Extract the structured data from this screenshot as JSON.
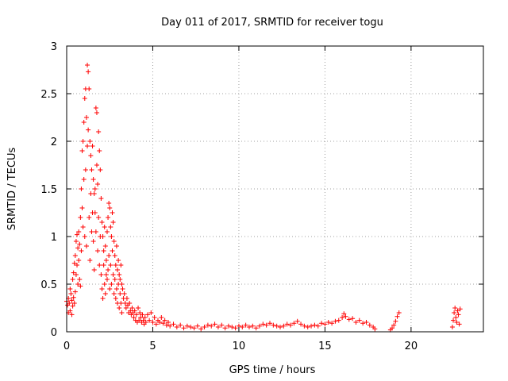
{
  "chart_data": {
    "type": "scatter",
    "title": "Day 011 of 2017, SRMTID for receiver togu",
    "xlabel": "GPS time / hours",
    "ylabel": "SRMTID / TECUs",
    "xlim": [
      0,
      24.2
    ],
    "ylim": [
      0,
      3
    ],
    "xticks": [
      0,
      5,
      10,
      15,
      20
    ],
    "xtick_labels": [
      "0",
      "5",
      "10",
      "15",
      "20"
    ],
    "yticks": [
      0,
      0.5,
      1,
      1.5,
      2,
      2.5,
      3
    ],
    "ytick_labels": [
      "0",
      "0.5",
      "1",
      "1.5",
      "2",
      "2.5",
      "3"
    ],
    "grid": true,
    "marker": "+",
    "color": "#ff0000",
    "series": [
      {
        "name": "SRMTID",
        "points": [
          [
            0.0,
            0.32
          ],
          [
            0.05,
            0.28
          ],
          [
            0.1,
            0.35
          ],
          [
            0.15,
            0.3
          ],
          [
            0.2,
            0.22
          ],
          [
            0.25,
            0.4
          ],
          [
            0.3,
            0.33
          ],
          [
            0.35,
            0.27
          ],
          [
            0.4,
            0.36
          ],
          [
            0.45,
            0.3
          ],
          [
            0.1,
            0.2
          ],
          [
            0.2,
            0.45
          ],
          [
            0.3,
            0.18
          ],
          [
            0.35,
            0.55
          ],
          [
            0.4,
            0.62
          ],
          [
            0.45,
            0.72
          ],
          [
            0.5,
            0.8
          ],
          [
            0.5,
            0.42
          ],
          [
            0.55,
            0.95
          ],
          [
            0.55,
            0.6
          ],
          [
            0.6,
            1.02
          ],
          [
            0.6,
            0.7
          ],
          [
            0.65,
            0.88
          ],
          [
            0.65,
            0.5
          ],
          [
            0.7,
            1.05
          ],
          [
            0.7,
            0.75
          ],
          [
            0.75,
            0.92
          ],
          [
            0.75,
            0.55
          ],
          [
            0.8,
            1.2
          ],
          [
            0.8,
            0.48
          ],
          [
            0.85,
            1.5
          ],
          [
            0.85,
            0.85
          ],
          [
            0.9,
            1.9
          ],
          [
            0.9,
            1.3
          ],
          [
            0.95,
            2.0
          ],
          [
            0.95,
            1.1
          ],
          [
            1.0,
            2.2
          ],
          [
            1.0,
            1.6
          ],
          [
            1.05,
            2.45
          ],
          [
            1.05,
            1.0
          ],
          [
            1.1,
            2.55
          ],
          [
            1.1,
            1.7
          ],
          [
            1.15,
            2.25
          ],
          [
            1.15,
            0.9
          ],
          [
            1.2,
            2.8
          ],
          [
            1.2,
            1.95
          ],
          [
            1.25,
            2.73
          ],
          [
            1.25,
            2.12
          ],
          [
            1.3,
            2.55
          ],
          [
            1.3,
            1.2
          ],
          [
            1.35,
            2.0
          ],
          [
            1.35,
            0.75
          ],
          [
            1.4,
            1.85
          ],
          [
            1.4,
            1.45
          ],
          [
            1.45,
            1.7
          ],
          [
            1.45,
            1.05
          ],
          [
            1.5,
            1.95
          ],
          [
            1.5,
            1.25
          ],
          [
            1.55,
            1.6
          ],
          [
            1.55,
            0.95
          ],
          [
            1.6,
            1.45
          ],
          [
            1.6,
            0.65
          ],
          [
            1.65,
            1.25
          ],
          [
            1.65,
            1.5
          ],
          [
            1.7,
            2.35
          ],
          [
            1.7,
            1.05
          ],
          [
            1.75,
            2.3
          ],
          [
            1.75,
            1.75
          ],
          [
            1.8,
            1.55
          ],
          [
            1.8,
            0.85
          ],
          [
            1.85,
            2.1
          ],
          [
            1.85,
            1.2
          ],
          [
            1.9,
            1.9
          ],
          [
            1.9,
            0.7
          ],
          [
            1.95,
            1.7
          ],
          [
            1.95,
            1.0
          ],
          [
            2.0,
            1.4
          ],
          [
            2.0,
            0.6
          ],
          [
            2.05,
            1.15
          ],
          [
            2.05,
            0.45
          ],
          [
            2.1,
            1.0
          ],
          [
            2.1,
            0.35
          ],
          [
            2.15,
            0.85
          ],
          [
            2.15,
            0.7
          ],
          [
            2.2,
            1.1
          ],
          [
            2.2,
            0.5
          ],
          [
            2.25,
            0.9
          ],
          [
            2.25,
            0.4
          ],
          [
            2.3,
            0.75
          ],
          [
            2.3,
            0.6
          ],
          [
            2.35,
            1.05
          ],
          [
            2.35,
            0.55
          ],
          [
            2.4,
            1.2
          ],
          [
            2.4,
            0.65
          ],
          [
            2.45,
            1.35
          ],
          [
            2.45,
            0.8
          ],
          [
            2.5,
            1.3
          ],
          [
            2.5,
            0.45
          ],
          [
            2.55,
            1.1
          ],
          [
            2.55,
            0.7
          ],
          [
            2.6,
            1.0
          ],
          [
            2.6,
            0.5
          ],
          [
            2.65,
            1.25
          ],
          [
            2.65,
            0.85
          ],
          [
            2.7,
            1.15
          ],
          [
            2.7,
            0.6
          ],
          [
            2.75,
            0.95
          ],
          [
            2.75,
            0.4
          ],
          [
            2.8,
            0.8
          ],
          [
            2.8,
            0.55
          ],
          [
            2.85,
            0.7
          ],
          [
            2.85,
            0.35
          ],
          [
            2.9,
            0.9
          ],
          [
            2.9,
            0.45
          ],
          [
            2.95,
            0.65
          ],
          [
            2.95,
            0.3
          ],
          [
            3.0,
            0.75
          ],
          [
            3.0,
            0.5
          ],
          [
            3.05,
            0.6
          ],
          [
            3.05,
            0.25
          ],
          [
            3.1,
            0.55
          ],
          [
            3.1,
            0.4
          ],
          [
            3.15,
            0.7
          ],
          [
            3.15,
            0.3
          ],
          [
            3.2,
            0.5
          ],
          [
            3.2,
            0.2
          ],
          [
            3.25,
            0.45
          ],
          [
            3.3,
            0.35
          ],
          [
            3.35,
            0.4
          ],
          [
            3.4,
            0.3
          ],
          [
            3.45,
            0.25
          ],
          [
            3.5,
            0.35
          ],
          [
            3.55,
            0.28
          ],
          [
            3.6,
            0.2
          ],
          [
            3.65,
            0.3
          ],
          [
            3.7,
            0.22
          ],
          [
            3.75,
            0.18
          ],
          [
            3.8,
            0.25
          ],
          [
            3.85,
            0.2
          ],
          [
            3.9,
            0.15
          ],
          [
            3.95,
            0.22
          ],
          [
            4.0,
            0.12
          ],
          [
            4.05,
            0.18
          ],
          [
            4.1,
            0.1
          ],
          [
            4.15,
            0.25
          ],
          [
            4.2,
            0.12
          ],
          [
            4.25,
            0.2
          ],
          [
            4.3,
            0.15
          ],
          [
            4.35,
            0.1
          ],
          [
            4.4,
            0.18
          ],
          [
            4.45,
            0.12
          ],
          [
            4.5,
            0.08
          ],
          [
            4.55,
            0.15
          ],
          [
            4.6,
            0.1
          ],
          [
            4.7,
            0.18
          ],
          [
            4.8,
            0.12
          ],
          [
            4.9,
            0.2
          ],
          [
            5.0,
            0.1
          ],
          [
            5.1,
            0.15
          ],
          [
            5.2,
            0.08
          ],
          [
            5.3,
            0.12
          ],
          [
            5.4,
            0.1
          ],
          [
            5.5,
            0.15
          ],
          [
            5.6,
            0.09
          ],
          [
            5.7,
            0.12
          ],
          [
            5.8,
            0.07
          ],
          [
            5.9,
            0.1
          ],
          [
            6.0,
            0.06
          ],
          [
            6.2,
            0.08
          ],
          [
            6.4,
            0.05
          ],
          [
            6.6,
            0.07
          ],
          [
            6.8,
            0.04
          ],
          [
            7.0,
            0.06
          ],
          [
            7.2,
            0.05
          ],
          [
            7.4,
            0.04
          ],
          [
            7.6,
            0.06
          ],
          [
            7.8,
            0.03
          ],
          [
            8.0,
            0.05
          ],
          [
            8.2,
            0.07
          ],
          [
            8.4,
            0.06
          ],
          [
            8.6,
            0.08
          ],
          [
            8.8,
            0.05
          ],
          [
            9.0,
            0.07
          ],
          [
            9.2,
            0.04
          ],
          [
            9.4,
            0.06
          ],
          [
            9.6,
            0.05
          ],
          [
            9.8,
            0.04
          ],
          [
            10.0,
            0.06
          ],
          [
            10.2,
            0.05
          ],
          [
            10.4,
            0.07
          ],
          [
            10.6,
            0.05
          ],
          [
            10.8,
            0.06
          ],
          [
            11.0,
            0.04
          ],
          [
            11.2,
            0.06
          ],
          [
            11.4,
            0.08
          ],
          [
            11.6,
            0.07
          ],
          [
            11.8,
            0.09
          ],
          [
            12.0,
            0.07
          ],
          [
            12.2,
            0.06
          ],
          [
            12.4,
            0.05
          ],
          [
            12.6,
            0.06
          ],
          [
            12.8,
            0.08
          ],
          [
            13.0,
            0.07
          ],
          [
            13.2,
            0.09
          ],
          [
            13.4,
            0.11
          ],
          [
            13.6,
            0.08
          ],
          [
            13.8,
            0.06
          ],
          [
            14.0,
            0.05
          ],
          [
            14.2,
            0.06
          ],
          [
            14.4,
            0.07
          ],
          [
            14.6,
            0.06
          ],
          [
            14.8,
            0.09
          ],
          [
            15.0,
            0.08
          ],
          [
            15.2,
            0.1
          ],
          [
            15.4,
            0.09
          ],
          [
            15.6,
            0.11
          ],
          [
            15.8,
            0.12
          ],
          [
            16.0,
            0.15
          ],
          [
            16.1,
            0.19
          ],
          [
            16.2,
            0.16
          ],
          [
            16.4,
            0.13
          ],
          [
            16.6,
            0.14
          ],
          [
            16.8,
            0.1
          ],
          [
            17.0,
            0.12
          ],
          [
            17.2,
            0.09
          ],
          [
            17.4,
            0.1
          ],
          [
            17.6,
            0.07
          ],
          [
            17.8,
            0.05
          ],
          [
            17.9,
            0.03
          ],
          [
            18.8,
            0.02
          ],
          [
            18.9,
            0.04
          ],
          [
            19.0,
            0.07
          ],
          [
            19.1,
            0.11
          ],
          [
            19.2,
            0.16
          ],
          [
            19.3,
            0.2
          ],
          [
            22.4,
            0.05
          ],
          [
            22.45,
            0.12
          ],
          [
            22.5,
            0.2
          ],
          [
            22.55,
            0.25
          ],
          [
            22.6,
            0.15
          ],
          [
            22.65,
            0.1
          ],
          [
            22.7,
            0.22
          ],
          [
            22.75,
            0.18
          ],
          [
            22.8,
            0.08
          ],
          [
            22.85,
            0.24
          ]
        ]
      }
    ]
  }
}
